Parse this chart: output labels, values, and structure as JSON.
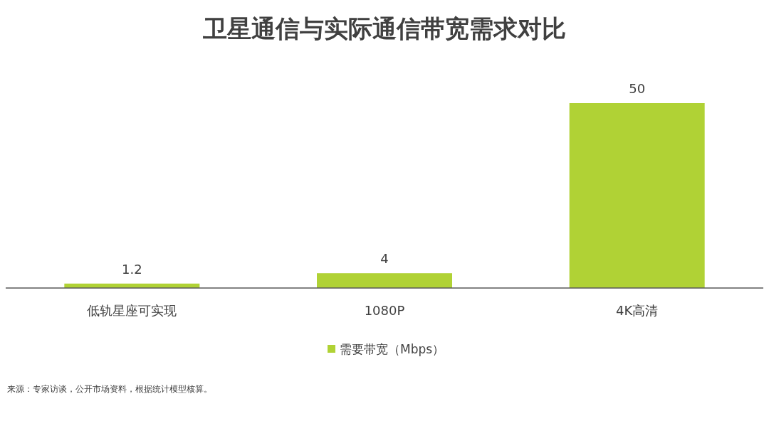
{
  "chart_data": {
    "type": "bar",
    "title": "卫星通信与实际通信带宽需求对比",
    "categories": [
      "低轨星座可实现",
      "1080P",
      "4K高清"
    ],
    "series": [
      {
        "name": "需要带宽（Mbps）",
        "color": "#b0d235",
        "values": [
          1.2,
          4,
          50
        ]
      }
    ],
    "data_labels": true,
    "legend": "bottom",
    "annotations": [
      "来源：专家访谈，公开市场资料，根据统计模型核算。"
    ]
  }
}
